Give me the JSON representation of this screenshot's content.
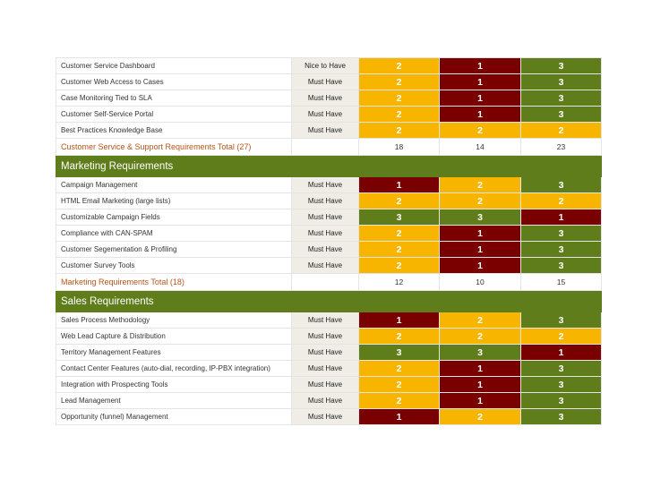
{
  "colors": {
    "score_1": "#7a0000",
    "score_2": "#f7b500",
    "score_3": "#5f7d1b",
    "section_header": "#5f7d1b",
    "total_label": "#b4541a",
    "priority_cell": "#efede6"
  },
  "groups": [
    {
      "header": "",
      "rows": [
        {
          "label": "Customer Service Dashboard",
          "priority": "Nice to Have",
          "scores": [
            "2",
            "1",
            "3"
          ]
        },
        {
          "label": "Customer Web Access to Cases",
          "priority": "Must Have",
          "scores": [
            "2",
            "1",
            "3"
          ]
        },
        {
          "label": "Case Monitoring Tied to SLA",
          "priority": "Must Have",
          "scores": [
            "2",
            "1",
            "3"
          ]
        },
        {
          "label": "Customer Self-Service Portal",
          "priority": "Must Have",
          "scores": [
            "2",
            "1",
            "3"
          ]
        },
        {
          "label": "Best Practices Knowledge Base",
          "priority": "Must Have",
          "scores": [
            "2",
            "2",
            "2"
          ]
        }
      ],
      "total": {
        "label": "Customer Service & Support Requirements Total (27)",
        "values": [
          "18",
          "14",
          "23"
        ]
      }
    },
    {
      "header": "Marketing Requirements",
      "rows": [
        {
          "label": "Campaign Management",
          "priority": "Must Have",
          "scores": [
            "1",
            "2",
            "3"
          ]
        },
        {
          "label": "HTML Email Marketing (large lists)",
          "priority": "Must Have",
          "scores": [
            "2",
            "2",
            "2"
          ]
        },
        {
          "label": "Customizable Campaign Fields",
          "priority": "Must Have",
          "scores": [
            "3",
            "3",
            "1"
          ]
        },
        {
          "label": "Compliance with CAN-SPAM",
          "priority": "Must Have",
          "scores": [
            "2",
            "1",
            "3"
          ]
        },
        {
          "label": "Customer Segementation & Profiling",
          "priority": "Must Have",
          "scores": [
            "2",
            "1",
            "3"
          ]
        },
        {
          "label": "Customer Survey Tools",
          "priority": "Must Have",
          "scores": [
            "2",
            "1",
            "3"
          ]
        }
      ],
      "total": {
        "label": "Marketing Requirements Total (18)",
        "values": [
          "12",
          "10",
          "15"
        ]
      }
    },
    {
      "header": "Sales Requirements",
      "rows": [
        {
          "label": "Sales Process Methodology",
          "priority": "Must Have",
          "scores": [
            "1",
            "2",
            "3"
          ]
        },
        {
          "label": "Web Lead Capture & Distribution",
          "priority": "Must Have",
          "scores": [
            "2",
            "2",
            "2"
          ]
        },
        {
          "label": "Territory Management Features",
          "priority": "Must Have",
          "scores": [
            "3",
            "3",
            "1"
          ]
        },
        {
          "label": "Contact Center Features (auto-dial, recording, IP-PBX integration)",
          "priority": "Must Have",
          "scores": [
            "2",
            "1",
            "3"
          ]
        },
        {
          "label": "Integration with Prospecting Tools",
          "priority": "Must Have",
          "scores": [
            "2",
            "1",
            "3"
          ]
        },
        {
          "label": "Lead Management",
          "priority": "Must Have",
          "scores": [
            "2",
            "1",
            "3"
          ]
        },
        {
          "label": "Opportunity (funnel) Management",
          "priority": "Must Have",
          "scores": [
            "1",
            "2",
            "3"
          ]
        }
      ]
    }
  ]
}
